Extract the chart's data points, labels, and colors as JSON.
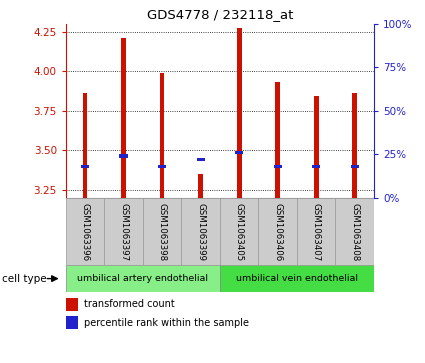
{
  "title": "GDS4778 / 232118_at",
  "samples": [
    "GSM1063396",
    "GSM1063397",
    "GSM1063398",
    "GSM1063399",
    "GSM1063405",
    "GSM1063406",
    "GSM1063407",
    "GSM1063408"
  ],
  "transformed_counts": [
    3.86,
    4.21,
    3.99,
    3.35,
    4.27,
    3.93,
    3.84,
    3.86
  ],
  "percentile_ranks": [
    18,
    24,
    18,
    22,
    26,
    18,
    18,
    18
  ],
  "ylim_left": [
    3.2,
    4.3
  ],
  "yticks_left": [
    3.25,
    3.5,
    3.75,
    4.0,
    4.25
  ],
  "yticks_right": [
    0,
    25,
    50,
    75,
    100
  ],
  "bar_color": "#cc1100",
  "percentile_color": "#2222cc",
  "bar_width": 0.12,
  "cell_types": [
    {
      "label": "umbilical artery endothelial",
      "n": 4,
      "color": "#88ee88"
    },
    {
      "label": "umbilical vein endothelial",
      "n": 4,
      "color": "#44dd44"
    }
  ],
  "cell_type_label": "cell type",
  "legend_items": [
    {
      "color": "#cc1100",
      "label": "transformed count"
    },
    {
      "color": "#2222cc",
      "label": "percentile rank within the sample"
    }
  ],
  "grid_color": "black",
  "grid_style": "dotted",
  "background_color": "#ffffff",
  "left_axis_color": "#cc1100",
  "right_axis_color": "#2222cc",
  "label_box_color": "#cccccc",
  "label_box_edge": "#999999"
}
